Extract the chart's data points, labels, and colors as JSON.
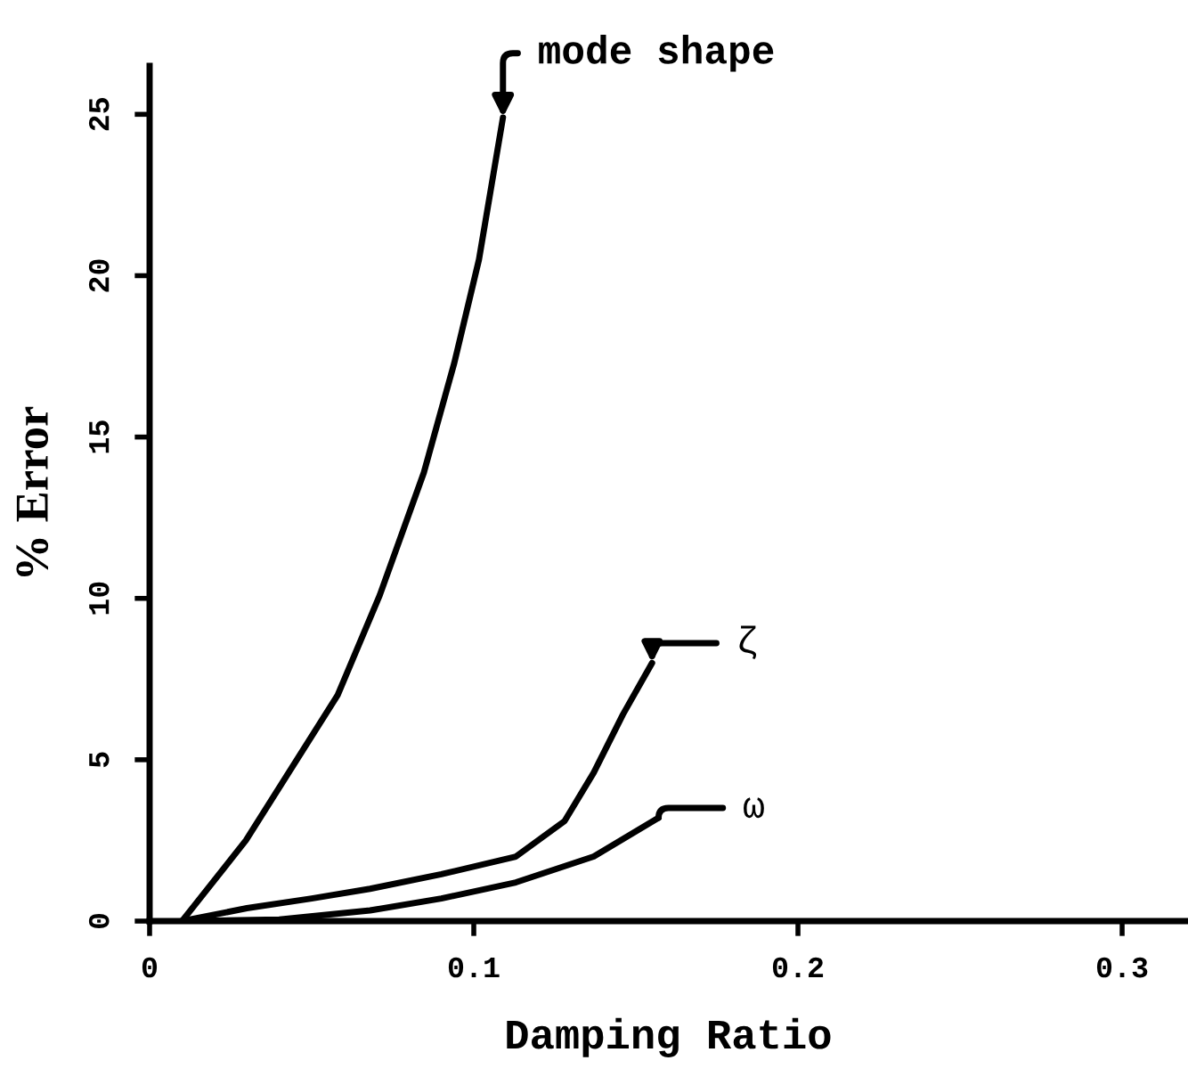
{
  "chart_data": {
    "type": "line",
    "xlabel": "Damping Ratio",
    "ylabel": "% Error",
    "xlim": [
      0,
      0.32
    ],
    "ylim": [
      0,
      26.5
    ],
    "xticks": [
      0,
      0.1,
      0.2,
      0.3
    ],
    "yticks": [
      0,
      5,
      10,
      15,
      20,
      25
    ],
    "grid": false,
    "legend": "right",
    "marker": "none",
    "line_style": "solid",
    "series": [
      {
        "name": "mode shape",
        "color": "#000000",
        "x": [
          0.01,
          0.0297,
          0.058,
          0.071,
          0.0846,
          0.094,
          0.1016,
          0.109
        ],
        "values": [
          0,
          2.5,
          7.0,
          10.1,
          13.9,
          17.3,
          20.5,
          24.9
        ]
      },
      {
        "name": "ζ",
        "color": "#000000",
        "x": [
          0.01,
          0.03,
          0.05,
          0.068,
          0.09,
          0.113,
          0.128,
          0.137,
          0.146,
          0.155
        ],
        "values": [
          0,
          0.4,
          0.7,
          1.0,
          1.45,
          2.0,
          3.1,
          4.6,
          6.4,
          8.0
        ]
      },
      {
        "name": "ω",
        "color": "#000000",
        "x": [
          0.01,
          0.04,
          0.068,
          0.09,
          0.113,
          0.137,
          0.157
        ],
        "values": [
          0,
          0.05,
          0.33,
          0.7,
          1.2,
          2.0,
          3.2
        ]
      }
    ]
  }
}
